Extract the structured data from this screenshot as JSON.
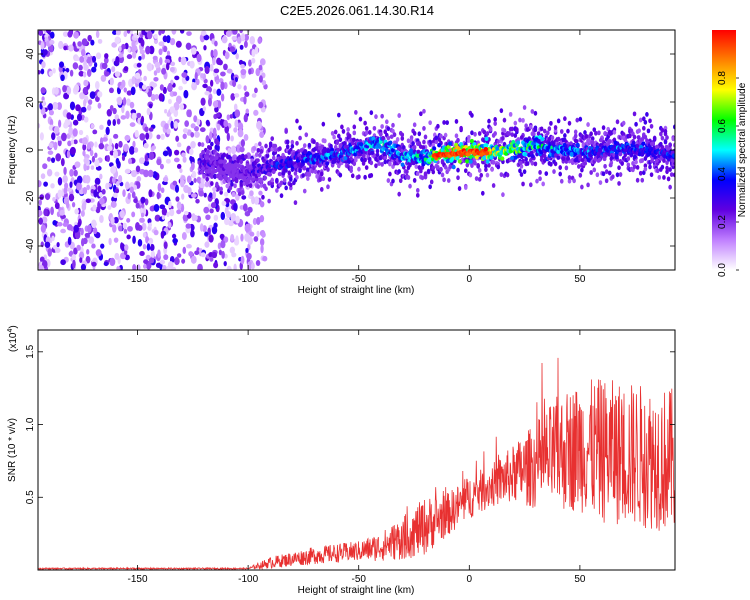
{
  "title": "C2E5.2026.061.14.30.R14",
  "chart_data": [
    {
      "type": "heatmap",
      "name": "spectrogram",
      "xlabel": "Height of straight line (km)",
      "ylabel": "Frequency (Hz)",
      "xlim": [
        -195,
        93
      ],
      "ylim": [
        -50,
        50
      ],
      "xticks": [
        -150,
        -100,
        -50,
        0,
        50
      ],
      "yticks": [
        -40,
        -20,
        0,
        20,
        40
      ],
      "colorbar": {
        "label": "Normalized spectral amplitude",
        "range": [
          0,
          1
        ],
        "ticks": [
          "0.0",
          "0.2",
          "0.4",
          "0.6",
          "0.8"
        ],
        "tick_values": [
          0.0,
          0.2,
          0.4,
          0.6,
          0.8
        ],
        "colors": [
          "#ffffff",
          "#c080ff",
          "#6000e0",
          "#0000ff",
          "#00ffff",
          "#00ff00",
          "#ffff00",
          "#ff8000",
          "#ff0000"
        ]
      },
      "ridge": {
        "description_points_km": [
          -120,
          -110,
          -100,
          -95,
          -80,
          -60,
          -40,
          -30,
          -20,
          -10,
          0,
          10,
          20,
          30,
          40,
          50,
          60,
          70,
          80,
          93
        ],
        "frequency_hz": [
          -5,
          -8,
          -10,
          -8,
          -5,
          -2,
          3,
          -3,
          -3,
          -2,
          -1,
          -1,
          0,
          2,
          0,
          -1,
          -1,
          1,
          0,
          -2
        ],
        "peak_amplitude": [
          0.35,
          0.25,
          0.3,
          0.4,
          0.45,
          0.5,
          0.55,
          0.55,
          0.6,
          0.95,
          0.85,
          0.85,
          0.75,
          0.65,
          0.55,
          0.5,
          0.45,
          0.5,
          0.45,
          0.4
        ]
      },
      "noise_region_km": [
        -195,
        -100
      ]
    },
    {
      "type": "line",
      "name": "snr",
      "xlabel": "Height of straight line (km)",
      "ylabel": "SNR (10 * v/v)",
      "multiplier": "(x10",
      "multiplier_exp": "4",
      "multiplier_close": ")",
      "xlim": [
        -195,
        93
      ],
      "ylim": [
        0,
        1.65
      ],
      "xticks": [
        -150,
        -100,
        -50,
        0,
        50
      ],
      "yticks": [
        "0.5",
        "1.0",
        "1.5"
      ],
      "ytick_values": [
        0.5,
        1.0,
        1.5
      ],
      "color": "#e83030",
      "envelope": {
        "x": [
          -195,
          -100,
          -90,
          -70,
          -50,
          -40,
          -30,
          -20,
          -10,
          0,
          10,
          20,
          30,
          40,
          50,
          60,
          70,
          80,
          93
        ],
        "mean": [
          0.01,
          0.01,
          0.05,
          0.1,
          0.13,
          0.16,
          0.22,
          0.3,
          0.38,
          0.5,
          0.58,
          0.66,
          0.72,
          0.8,
          0.85,
          0.82,
          0.8,
          0.78,
          0.75
        ],
        "spread": [
          0.005,
          0.005,
          0.04,
          0.06,
          0.07,
          0.1,
          0.15,
          0.2,
          0.15,
          0.15,
          0.15,
          0.2,
          0.3,
          0.4,
          0.45,
          0.5,
          0.5,
          0.5,
          0.5
        ]
      }
    }
  ]
}
